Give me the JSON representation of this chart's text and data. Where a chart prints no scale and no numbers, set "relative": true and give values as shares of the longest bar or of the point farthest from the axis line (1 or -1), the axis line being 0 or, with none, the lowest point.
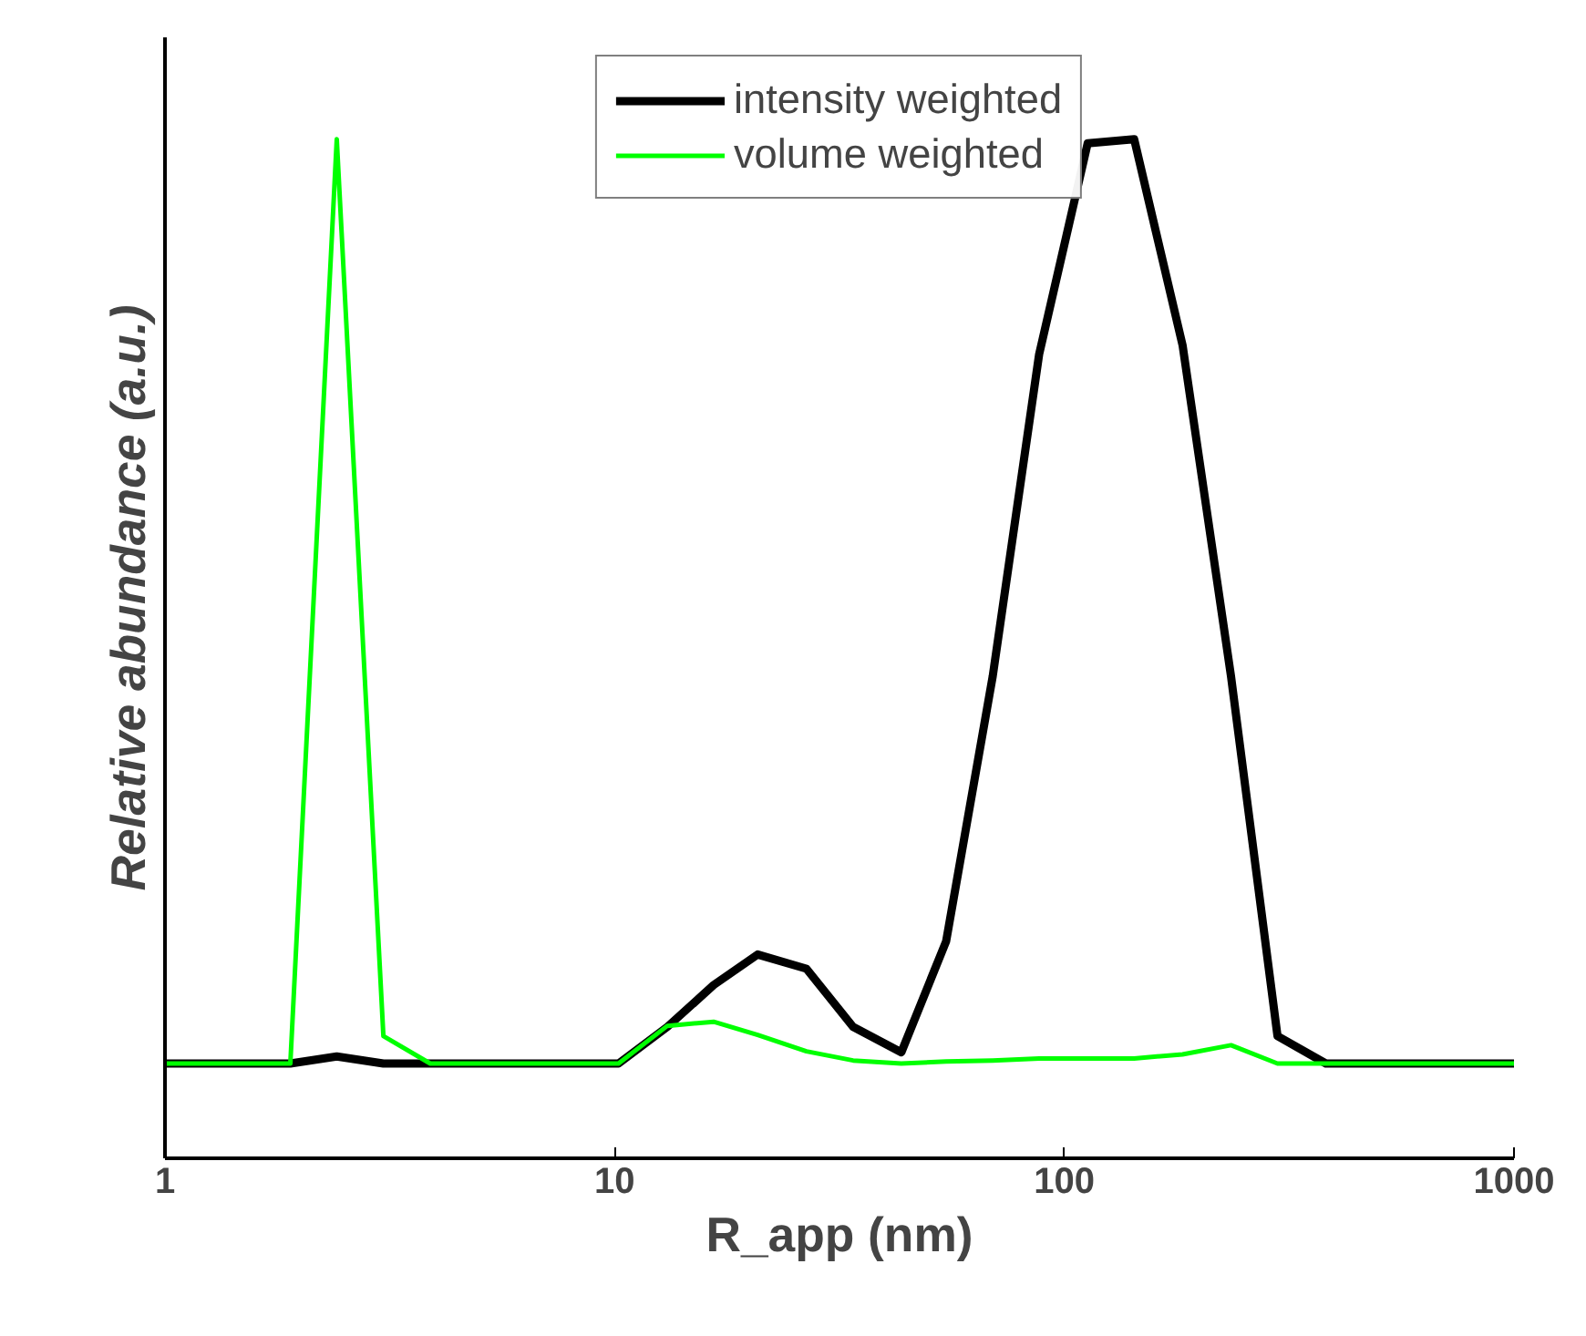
{
  "chart_data": {
    "type": "line",
    "relative": true,
    "log": "x",
    "xlabel": "R_app (nm)",
    "ylabel": "Relative abundance (a.u.)",
    "xlim": [
      1,
      1000
    ],
    "xticks": [
      1,
      10,
      100,
      1000
    ],
    "tick_labels": "x",
    "grid": false,
    "legend": "top",
    "marker": "none",
    "line_style": "solid",
    "series": [
      {
        "name": "intensity weighted",
        "color": "#000000",
        "x": [
          1,
          1.9,
          2.41,
          3.06,
          3.89,
          10.2,
          13.1,
          16.6,
          20.8,
          26.7,
          33.9,
          43.4,
          54.6,
          69.3,
          87.9,
          112.7,
          143.0,
          183.2,
          234.8,
          297.9,
          381.7,
          1000
        ],
        "values": [
          0.093,
          0.093,
          0.1,
          0.093,
          0.093,
          0.093,
          0.129,
          0.17,
          0.2,
          0.186,
          0.129,
          0.104,
          0.213,
          0.473,
          0.789,
          0.996,
          1,
          0.798,
          0.473,
          0.12,
          0.093,
          0.093
        ]
      },
      {
        "name": "volume weighted",
        "color": "#00ff00",
        "x": [
          1,
          1.9,
          2.41,
          3.06,
          3.89,
          10.2,
          13.1,
          16.6,
          20.8,
          26.7,
          33.9,
          43.4,
          54.6,
          69.3,
          87.9,
          112.7,
          143.0,
          183.2,
          234.8,
          297.9,
          381.7,
          1000
        ],
        "values": [
          0.093,
          0.093,
          1,
          0.12,
          0.093,
          0.093,
          0.13,
          0.134,
          0.121,
          0.105,
          0.096,
          0.093,
          0.095,
          0.096,
          0.098,
          0.098,
          0.098,
          0.102,
          0.111,
          0.093,
          0.093,
          0.093
        ]
      }
    ]
  }
}
